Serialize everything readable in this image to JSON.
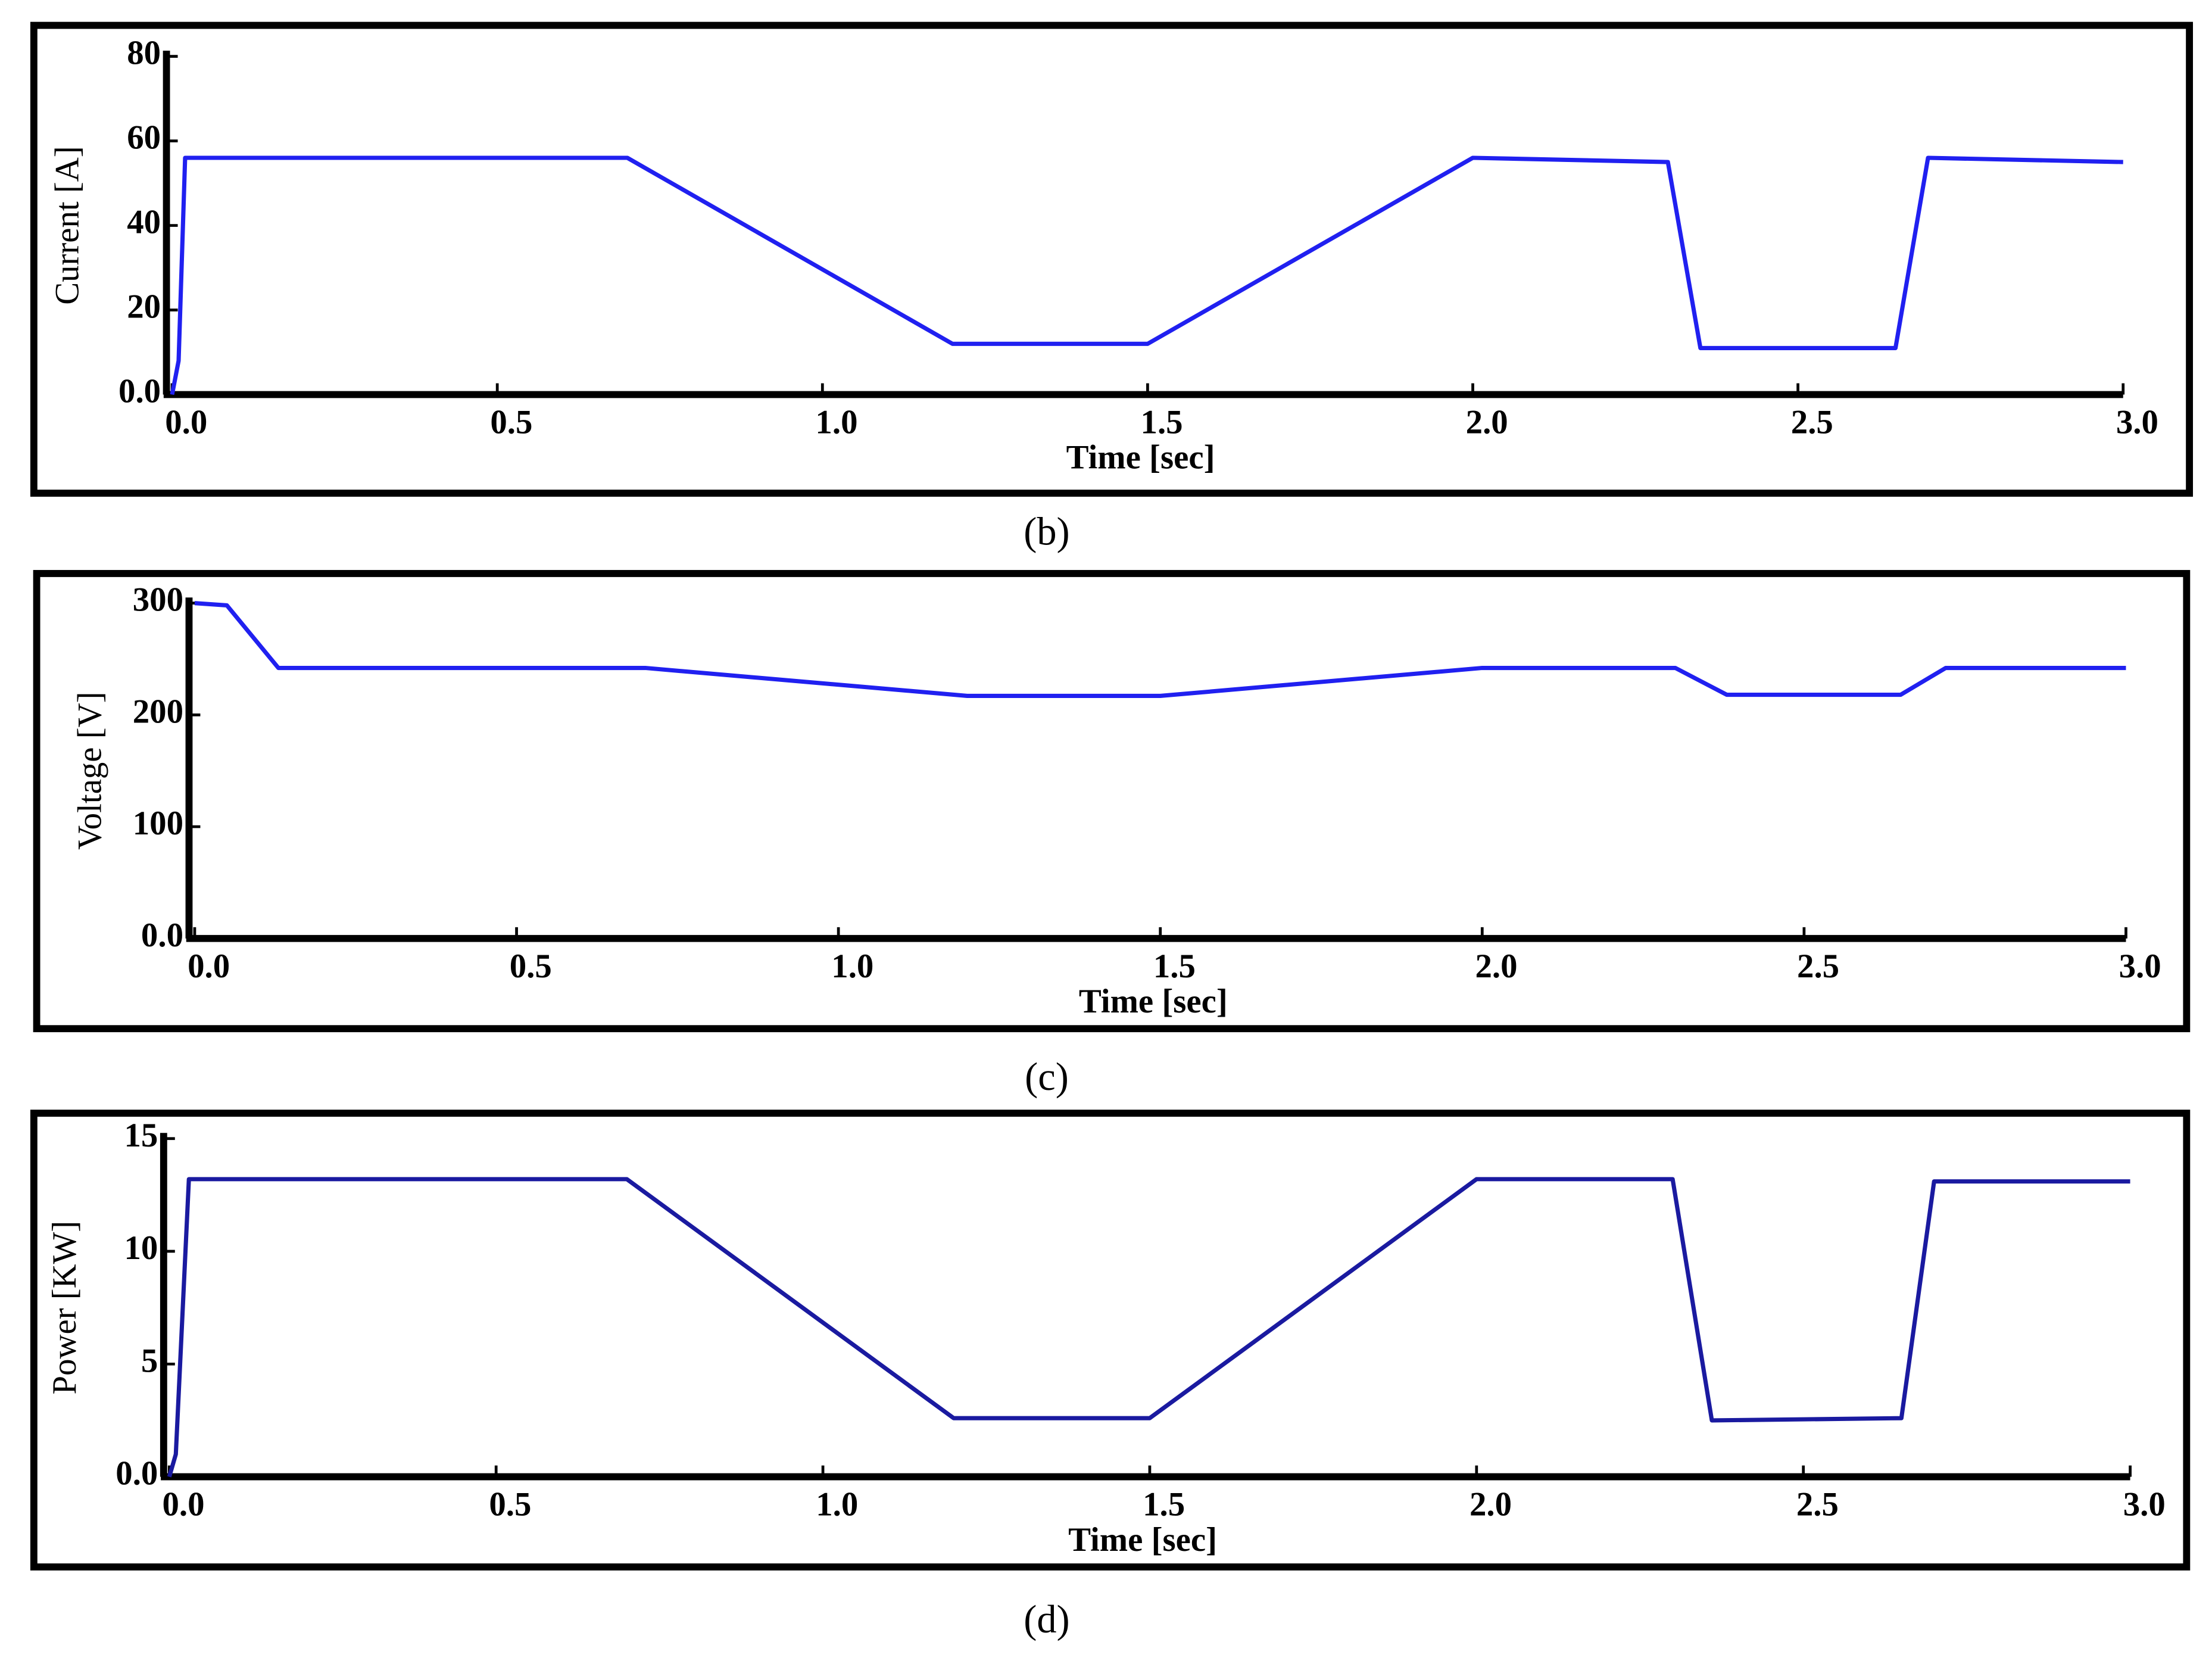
{
  "chart_data": [
    {
      "type": "line",
      "caption": "(b)",
      "y_label": "Current [A]",
      "x_label": "Time [sec]",
      "color": "#2020f0",
      "x": [
        0,
        0.01,
        0.02,
        0.7,
        1.2,
        1.5,
        2.0,
        2.3,
        2.35,
        2.65,
        2.7,
        3.0
      ],
      "values": [
        0,
        8,
        56,
        56,
        12,
        12,
        56,
        55,
        11,
        11,
        56,
        55
      ],
      "xlim": [
        0,
        3
      ],
      "ylim": [
        0,
        80
      ],
      "xticks": [
        {
          "value": 0,
          "label": "0.0"
        },
        0.5,
        {
          "value": 1,
          "label": "1.0"
        },
        1.5,
        {
          "value": 2,
          "label": "2.0"
        },
        2.5,
        {
          "value": 3,
          "label": "3.0"
        }
      ],
      "yticks": [
        {
          "value": 0,
          "label": "0.0"
        },
        20,
        40,
        60,
        80
      ]
    },
    {
      "type": "line",
      "caption": "(c)",
      "y_label": "Voltage [V]",
      "x_label": "Time [sec]",
      "color": "#2020f0",
      "x": [
        0,
        0.05,
        0.13,
        0.7,
        1.2,
        1.5,
        2.0,
        2.3,
        2.38,
        2.65,
        2.72,
        3.0
      ],
      "values": [
        300,
        298,
        242,
        242,
        217,
        217,
        242,
        242,
        218,
        218,
        242,
        242
      ],
      "xlim": [
        0,
        3
      ],
      "ylim": [
        0,
        300
      ],
      "xticks": [
        {
          "value": 0,
          "label": "0.0"
        },
        0.5,
        {
          "value": 1,
          "label": "1.0"
        },
        1.5,
        {
          "value": 2,
          "label": "2.0"
        },
        2.5,
        {
          "value": 3,
          "label": "3.0"
        }
      ],
      "yticks": [
        {
          "value": 0,
          "label": "0.0"
        },
        100,
        200,
        300
      ]
    },
    {
      "type": "line",
      "caption": "(d)",
      "y_label": "Power [KW]",
      "x_label": "Time [sec]",
      "color": "#1a1aa0",
      "x": [
        0,
        0.01,
        0.03,
        0.7,
        1.2,
        1.5,
        2.0,
        2.3,
        2.36,
        2.65,
        2.7,
        3.0
      ],
      "values": [
        0,
        1,
        13.2,
        13.2,
        2.6,
        2.6,
        13.2,
        13.2,
        2.5,
        2.6,
        13.1,
        13.1
      ],
      "xlim": [
        0,
        3
      ],
      "ylim": [
        0,
        15
      ],
      "xticks": [
        {
          "value": 0,
          "label": "0.0"
        },
        0.5,
        {
          "value": 1,
          "label": "1.0"
        },
        1.5,
        {
          "value": 2,
          "label": "2.0"
        },
        2.5,
        {
          "value": 3,
          "label": "3.0"
        }
      ],
      "yticks": [
        {
          "value": 0,
          "label": "0.0"
        },
        5,
        10,
        15
      ]
    }
  ]
}
